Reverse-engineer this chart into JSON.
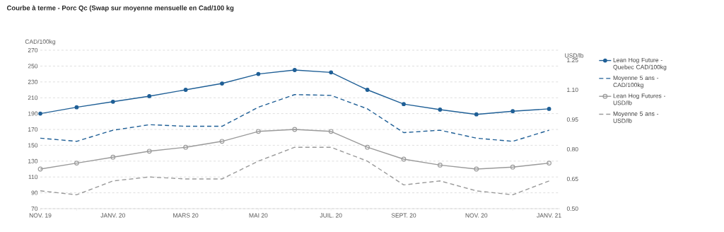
{
  "chart_data": {
    "type": "line",
    "title": "Courbe à terme - Porc Qc (Swap sur moyenne mensuelle en Cad/100 kg",
    "ylabel": "CAD/100kg",
    "y2label": "USD/lb",
    "categories": [
      "NOV. 19",
      null,
      "JANV. 20",
      null,
      "MARS 20",
      null,
      "MAI 20",
      null,
      "JUIL. 20",
      null,
      "SEPT. 20",
      null,
      "NOV. 20",
      null,
      "JANV. 21"
    ],
    "ylim": [
      70,
      270
    ],
    "yticks": [
      70,
      90,
      110,
      130,
      150,
      170,
      190,
      210,
      230,
      250,
      270
    ],
    "y2lim": [
      0.5,
      1.3
    ],
    "y2ticks": [
      {
        "value": 0.5,
        "label": "0.50"
      },
      {
        "value": 0.65,
        "label": "0.65"
      },
      {
        "value": 0.8,
        "label": "0.80"
      },
      {
        "value": 0.95,
        "label": "0.95"
      },
      {
        "value": 1.1,
        "label": "1.10"
      },
      {
        "value": 1.25,
        "label": "1.25"
      }
    ],
    "grid": "y",
    "legend": "right",
    "series": [
      {
        "name": "Lean Hog Future - Quebec CAD/100kg",
        "color": "#1f5f96",
        "marker": "circle",
        "line_style": "solid",
        "values": [
          190,
          198,
          205,
          212,
          220,
          228,
          240,
          245,
          242,
          220,
          202,
          195,
          189,
          193,
          196
        ]
      },
      {
        "name": "Moyenne 5 ans - CAD/100kg",
        "color": "#1f5f96",
        "marker": "none",
        "line_style": "dashed",
        "values": [
          159,
          155,
          169,
          176,
          174,
          174,
          198,
          214,
          213,
          196,
          166,
          169,
          159,
          155,
          169
        ]
      },
      {
        "name": "Lean Hog Futures - USD/lb",
        "color": "#9a9a9a",
        "marker": "circle",
        "line_style": "solid",
        "axis": "y2",
        "values": [
          0.7,
          0.73,
          0.76,
          0.79,
          0.81,
          0.84,
          0.89,
          0.9,
          0.89,
          0.81,
          0.75,
          0.72,
          0.7,
          0.71,
          0.73
        ]
      },
      {
        "name": "Moyenne 5 ans - USD/lb",
        "color": "#9a9a9a",
        "marker": "none",
        "line_style": "dashed",
        "axis": "y2",
        "values": [
          0.59,
          0.57,
          0.64,
          0.66,
          0.65,
          0.65,
          0.74,
          0.81,
          0.81,
          0.74,
          0.62,
          0.64,
          0.59,
          0.57,
          0.64
        ]
      }
    ]
  }
}
